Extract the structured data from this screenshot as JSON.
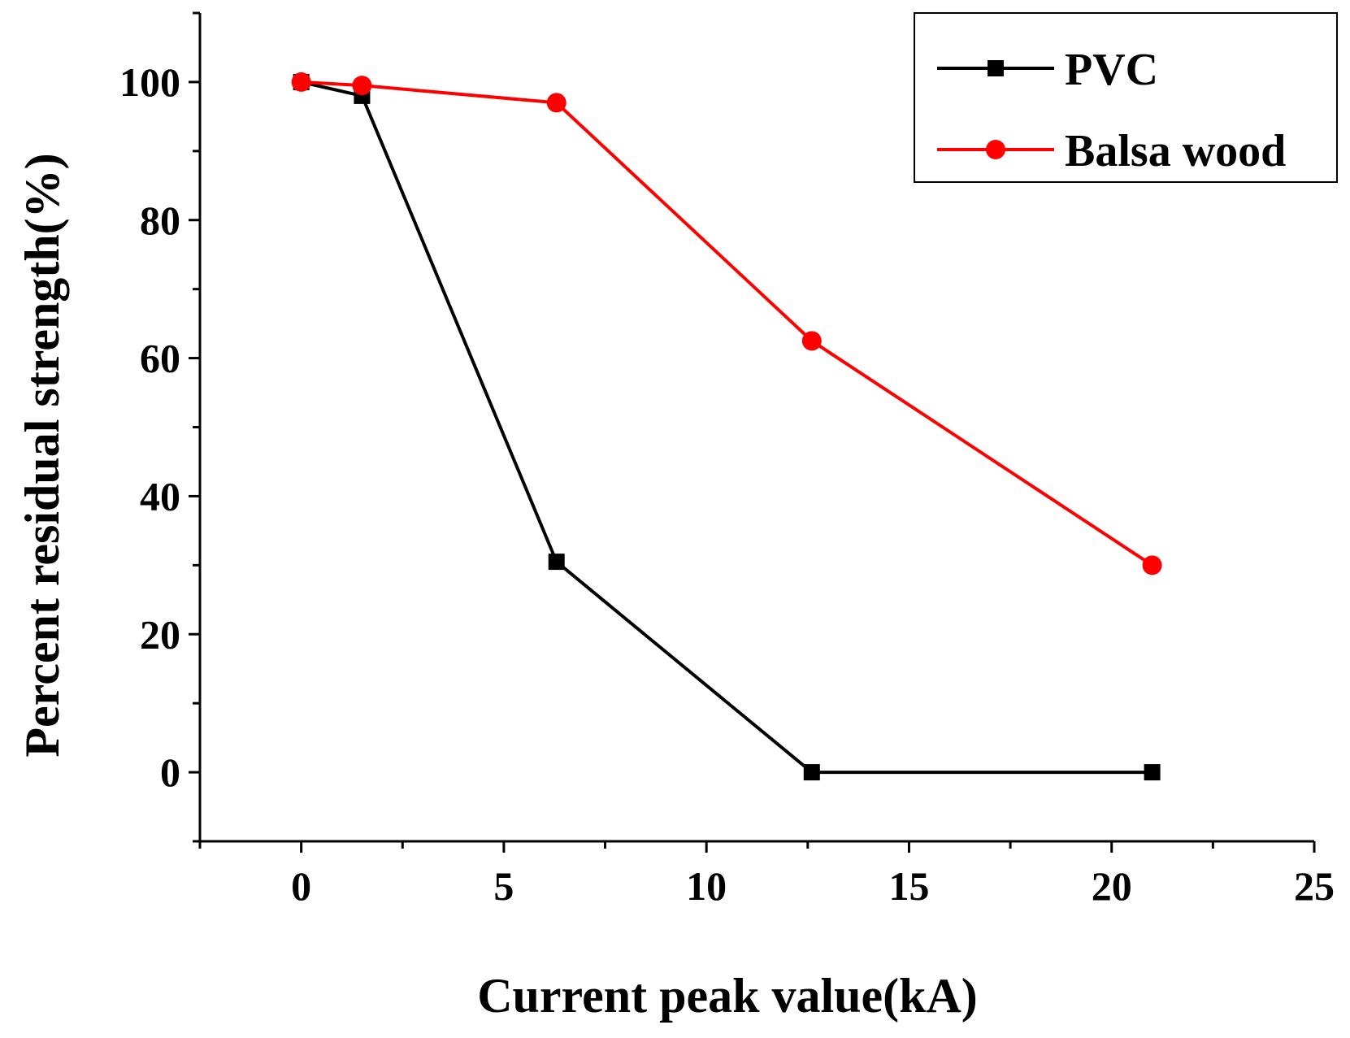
{
  "chart_data": {
    "type": "line",
    "title": "",
    "xlabel": "Current peak value(kA)",
    "ylabel": "Percent residual strength(%)",
    "xlim": [
      -2.5,
      25
    ],
    "ylim": [
      -10,
      110
    ],
    "xticks": [
      0,
      5,
      10,
      15,
      20,
      25
    ],
    "yticks": [
      0,
      20,
      40,
      60,
      80,
      100
    ],
    "xtick_labels": [
      "0",
      "5",
      "10",
      "15",
      "20",
      "25"
    ],
    "ytick_labels": [
      "0",
      "20",
      "40",
      "60",
      "80",
      "100"
    ],
    "legend_position": "top-right",
    "grid": false,
    "series": [
      {
        "name": "PVC",
        "color": "#000000",
        "marker": "square",
        "x": [
          0,
          1.5,
          6.3,
          12.6,
          21
        ],
        "y": [
          100,
          98,
          30.5,
          0,
          0
        ]
      },
      {
        "name": "Balsa wood",
        "color": "#ff0000",
        "marker": "circle",
        "x": [
          0,
          1.5,
          6.3,
          12.6,
          21
        ],
        "y": [
          100,
          99.5,
          97,
          62.5,
          30
        ]
      }
    ]
  }
}
